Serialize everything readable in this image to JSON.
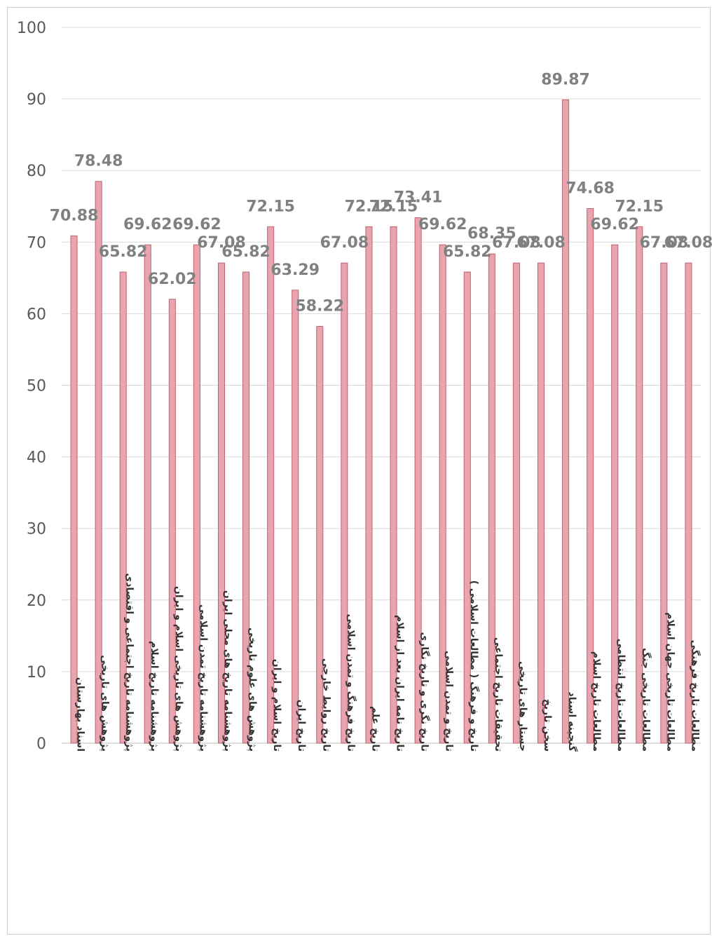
{
  "chart_data": {
    "type": "bar",
    "title": "",
    "xlabel": "",
    "ylabel": "",
    "ylim": [
      0,
      100
    ],
    "yticks": [
      "0",
      "10",
      "20",
      "30",
      "40",
      "50",
      "60",
      "70",
      "80",
      "90",
      "100"
    ],
    "grid": true,
    "legend": "none",
    "categories": [
      "اسناد بهارستان",
      "پژوهش های تاریخی",
      "پژوهشنامه تاریخ اجتماعی و اقتصادی",
      "پژوهشنامه تاریخ اسلام",
      "پژوهش های تاریخی اسلام و ایران",
      "پژوهشنامه تاریخ تمدن اسلامی",
      "پژوهشنامه تاریخ های محلی ایران",
      "پژوهش های علوم تاریخی",
      "تاریخ اسلام و ایران",
      "تاریخ ایران",
      "تاریخ روابط خارجی",
      "تاریخ فرهنگ و تمدن اسلامی",
      "تاریخ علم",
      "تاریخ نامه ایران بعد از اسلام",
      "تاریخ نگری و تاریخ نگاری",
      "تاریخ و تمدن اسلامی",
      "تاریخ و فرهنگ ( مطالعات اسلامی )",
      "تحقیقات تاریخ اجتماعی",
      "جستار های تاریخی",
      "سخن تاریخ",
      "گنجینه اسناد",
      "مطالعات تاریخ اسلام",
      "مطالعات تاریخ انتظامی",
      "مطالعات تاریخی جنگ",
      "مطالعات تاریخی جهان اسلام",
      "مطالعات تاریخ فرهنگی"
    ],
    "values": [
      70.88,
      78.48,
      65.82,
      69.62,
      62.02,
      69.62,
      67.08,
      65.82,
      72.15,
      63.29,
      58.22,
      67.08,
      72.15,
      72.15,
      73.41,
      69.62,
      65.82,
      68.35,
      67.08,
      67.08,
      89.87,
      74.68,
      69.62,
      72.15,
      67.08,
      67.08
    ],
    "data_labels": [
      "70.88",
      "78.48",
      "65.82",
      "69.62",
      "62.02",
      "69.62",
      "67.08",
      "65.82",
      "72.15",
      "63.29",
      "58.22",
      "67.08",
      "72.15",
      "72.15",
      "73.41",
      "69.62",
      "65.82",
      "68.35",
      "67.08",
      "67.08",
      "89.87",
      "74.68",
      "69.62",
      "72.15",
      "67.08",
      "67.08"
    ],
    "colors": {
      "bar_fill": "#e8a5b0",
      "bar_stroke": "#c0606e",
      "grid": "#d9d9d9",
      "tick_text": "#595959",
      "data_label": "#808080",
      "category_text": "#333333"
    }
  }
}
